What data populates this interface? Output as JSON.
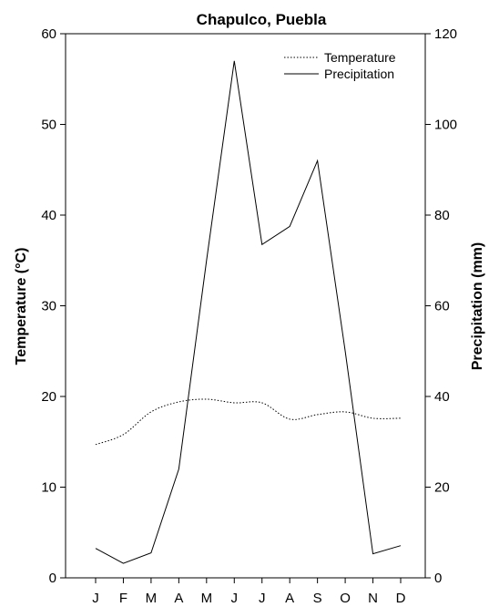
{
  "chart_data": {
    "type": "line",
    "title": "Chapulco, Puebla",
    "categories": [
      "J",
      "F",
      "M",
      "A",
      "M",
      "J",
      "J",
      "A",
      "S",
      "O",
      "N",
      "D"
    ],
    "y_left": {
      "label": "Temperature (°C)",
      "range": [
        0,
        60
      ],
      "ticks": [
        0,
        10,
        20,
        30,
        40,
        50,
        60
      ]
    },
    "y_right": {
      "label": "Precipitation (mm)",
      "range": [
        0,
        120
      ],
      "ticks": [
        0,
        20,
        40,
        60,
        80,
        100,
        120
      ]
    },
    "legend_position": "top-right",
    "series": [
      {
        "name": "Temperature",
        "axis": "left",
        "style": "dotted",
        "values": [
          14.7,
          15.8,
          18.3,
          19.4,
          19.7,
          19.3,
          19.3,
          17.5,
          18.0,
          18.3,
          17.6,
          17.6
        ]
      },
      {
        "name": "Precipitation",
        "axis": "right",
        "style": "solid",
        "values": [
          6.5,
          3.2,
          5.5,
          24.0,
          70.0,
          114.0,
          73.5,
          77.5,
          92.0,
          50.0,
          5.3,
          7.1
        ]
      }
    ]
  }
}
